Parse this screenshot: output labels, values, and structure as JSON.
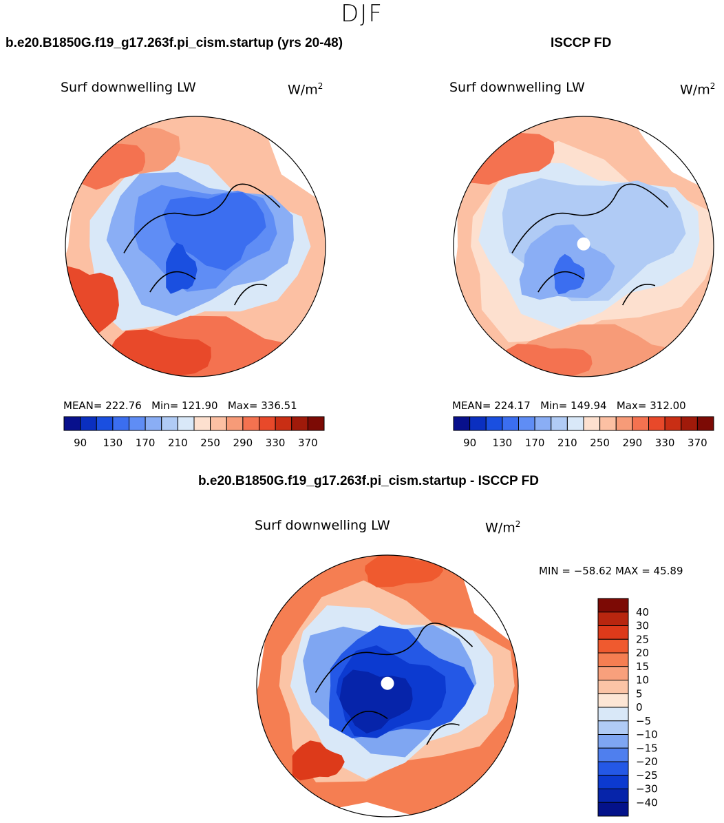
{
  "figure": {
    "season": "DJF",
    "variable": "Surf downwelling LW",
    "units_base": "W/m",
    "units_exp": "2"
  },
  "panels": {
    "model": {
      "title": "b.e20.B1850G.f19_g17.263f.pi_cism.startup (yrs 20-48)",
      "stats": {
        "mean_label": "MEAN=",
        "mean": "222.76",
        "min_label": "Min=",
        "min": "121.90",
        "max_label": "Max=",
        "max": "336.51"
      }
    },
    "obs": {
      "title": "ISCCP FD",
      "stats": {
        "mean_label": "MEAN=",
        "mean": "224.17",
        "min_label": "Min=",
        "min": "149.94",
        "max_label": "Max=",
        "max": "312.00"
      }
    },
    "diff": {
      "title": "b.e20.B1850G.f19_g17.263f.pi_cism.startup - ISCCP FD",
      "stats_text": "MIN = −58.62 MAX =  45.89"
    }
  },
  "chart_data": [
    {
      "type": "heatmap",
      "name": "model",
      "projection": "polar stereographic (north)",
      "title": "b.e20.B1850G.f19_g17.263f.pi_cism.startup (yrs 20-48)",
      "variable": "Surf downwelling LW",
      "units": "W/m2",
      "mean": 222.76,
      "min": 121.9,
      "max": 336.51,
      "levels": [
        90,
        110,
        130,
        150,
        170,
        190,
        210,
        230,
        250,
        270,
        290,
        310,
        330,
        350,
        370
      ],
      "colorbar_tick_labels": [
        "90",
        "130",
        "170",
        "210",
        "250",
        "290",
        "330",
        "370"
      ],
      "colors": [
        "#08108c",
        "#0a2fc0",
        "#1a4fe0",
        "#3b6ef0",
        "#5f8df5",
        "#8aaef5",
        "#b0cbf5",
        "#d9e8f8",
        "#fde0cf",
        "#fcc0a3",
        "#f79b78",
        "#f47250",
        "#e8492a",
        "#c92e14",
        "#a01a0a",
        "#7c0a05"
      ]
    },
    {
      "type": "heatmap",
      "name": "obs",
      "projection": "polar stereographic (north)",
      "title": "ISCCP FD",
      "variable": "Surf downwelling LW",
      "units": "W/m2",
      "mean": 224.17,
      "min": 149.94,
      "max": 312.0,
      "levels": [
        90,
        110,
        130,
        150,
        170,
        190,
        210,
        230,
        250,
        270,
        290,
        310,
        330,
        350,
        370
      ],
      "colorbar_tick_labels": [
        "90",
        "130",
        "170",
        "210",
        "250",
        "290",
        "330",
        "370"
      ],
      "colors": [
        "#08108c",
        "#0a2fc0",
        "#1a4fe0",
        "#3b6ef0",
        "#5f8df5",
        "#8aaef5",
        "#b0cbf5",
        "#d9e8f8",
        "#fde0cf",
        "#fcc0a3",
        "#f79b78",
        "#f47250",
        "#e8492a",
        "#c92e14",
        "#a01a0a",
        "#7c0a05"
      ]
    },
    {
      "type": "heatmap",
      "name": "difference",
      "projection": "polar stereographic (north)",
      "title": "b.e20.B1850G.f19_g17.263f.pi_cism.startup - ISCCP FD",
      "variable": "Surf downwelling LW",
      "units": "W/m2",
      "min": -58.62,
      "max": 45.89,
      "levels": [
        -40,
        -30,
        -25,
        -20,
        -15,
        -10,
        -5,
        0,
        5,
        10,
        15,
        20,
        25,
        30,
        40
      ],
      "colorbar_tick_labels": [
        "40",
        "30",
        "25",
        "20",
        "15",
        "10",
        "5",
        "0",
        "−5",
        "−10",
        "−15",
        "−20",
        "−25",
        "−30",
        "−40"
      ],
      "colors": [
        "#7c0a05",
        "#b8260f",
        "#dd3a1a",
        "#ef5a2f",
        "#f57e52",
        "#f8a07c",
        "#fbc4a6",
        "#fde6d5",
        "#d9e8f8",
        "#b0cbf5",
        "#7fa6f2",
        "#4f7fee",
        "#2458e6",
        "#0c3ad0",
        "#0624aa",
        "#04128a"
      ]
    }
  ]
}
